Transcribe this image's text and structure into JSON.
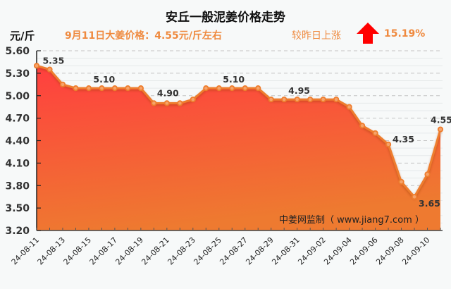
{
  "header": {
    "title": "安丘一般泥姜价格走势",
    "unit": "元/斤",
    "subtitle": "9月11日大姜价格：4.55元/斤左右",
    "change_label": "较昨日上涨",
    "change_icon": "up-arrow-icon",
    "change_value": "15.19%"
  },
  "watermark": "中姜网监制（ www.jiang7.com ）",
  "colors": {
    "line": "#ee7d2d",
    "fill_top": "#ff3f3f",
    "fill_bottom": "#ee7a30",
    "arrow": "#ff0000",
    "accent_text": "#ef8a3f"
  },
  "chart_data": {
    "type": "area",
    "title": "安丘一般泥姜价格走势",
    "xlabel": "",
    "ylabel": "元/斤",
    "ylim": [
      3.2,
      5.6
    ],
    "yticks": [
      "5.60",
      "5.30",
      "5.00",
      "4.70",
      "4.40",
      "4.10",
      "3.80",
      "3.50",
      "3.20"
    ],
    "grid": true,
    "legend": "none",
    "x": [
      "24-08-11",
      "24-08-12",
      "24-08-13",
      "24-08-14",
      "24-08-15",
      "24-08-16",
      "24-08-17",
      "24-08-18",
      "24-08-19",
      "24-08-20",
      "24-08-21",
      "24-08-22",
      "24-08-23",
      "24-08-24",
      "24-08-25",
      "24-08-26",
      "24-08-27",
      "24-08-28",
      "24-08-29",
      "24-08-30",
      "24-08-31",
      "24-09-01",
      "24-09-02",
      "24-09-03",
      "24-09-04",
      "24-09-05",
      "24-09-06",
      "24-09-07",
      "24-09-08",
      "24-09-09",
      "24-09-10",
      "24-09-11"
    ],
    "xtick_labels": [
      "24-08-11",
      "24-08-13",
      "24-08-15",
      "24-08-17",
      "24-08-19",
      "24-08-21",
      "24-08-23",
      "24-08-25",
      "24-08-27",
      "24-08-29",
      "24-08-31",
      "24-09-02",
      "24-09-04",
      "24-09-06",
      "24-09-08",
      "24-09-10"
    ],
    "series": [
      {
        "name": "安丘一般泥姜价格",
        "values": [
          5.4,
          5.35,
          5.15,
          5.1,
          5.1,
          5.1,
          5.1,
          5.1,
          5.1,
          4.9,
          4.9,
          4.9,
          4.95,
          5.1,
          5.1,
          5.1,
          5.1,
          5.1,
          4.95,
          4.95,
          4.95,
          4.95,
          4.95,
          4.95,
          4.85,
          4.6,
          4.5,
          4.35,
          3.85,
          3.65,
          3.95,
          4.55
        ]
      }
    ],
    "annotations": [
      {
        "index": 1,
        "text": "5.35"
      },
      {
        "index": 5,
        "text": "5.10"
      },
      {
        "index": 10,
        "text": "4.90"
      },
      {
        "index": 15,
        "text": "5.10"
      },
      {
        "index": 21,
        "text": "4.95"
      },
      {
        "index": 27,
        "text": "4.35"
      },
      {
        "index": 29,
        "text": "3.65"
      },
      {
        "index": 31,
        "text": "4.55"
      }
    ]
  }
}
